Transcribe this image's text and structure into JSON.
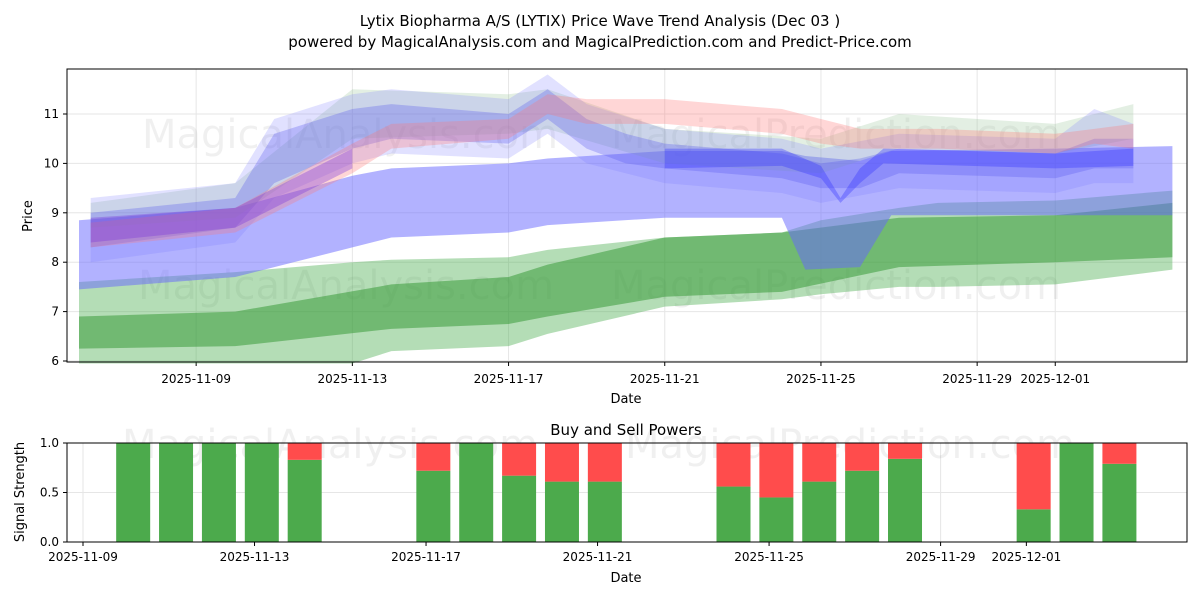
{
  "title_line1": "Lytix Biopharma A/S (LYTIX) Price Wave Trend Analysis (Dec 03 )",
  "title_line2": "powered by MagicalAnalysis.com and MagicalPrediction.com and Predict-Price.com",
  "watermarks": [
    "MagicalAnalysis.com",
    "MagicalPrediction.com"
  ],
  "chart_data": [
    {
      "type": "area",
      "title": "",
      "xlabel": "Date",
      "ylabel": "Price",
      "ylim": [
        5.95,
        11.9
      ],
      "xlim": [
        "2025-11-05.7",
        "2025-12-04.4"
      ],
      "x_ticks": [
        "2025-11-09",
        "2025-11-13",
        "2025-11-17",
        "2025-11-21",
        "2025-11-25",
        "2025-11-29",
        "2025-12-01"
      ],
      "y_ticks": [
        6,
        7,
        8,
        9,
        10,
        11
      ],
      "grid": true,
      "bands": [
        {
          "name": "green-outer",
          "color": "#4caf50",
          "opacity": 0.42,
          "points": [
            [
              0,
              5.95,
              7.6
            ],
            [
              4,
              5.95,
              7.8
            ],
            [
              7,
              5.95,
              8.0
            ],
            [
              8,
              6.2,
              8.05
            ],
            [
              11,
              6.3,
              8.1
            ],
            [
              12,
              6.55,
              8.25
            ],
            [
              15,
              7.1,
              8.5
            ],
            [
              18,
              7.25,
              8.6
            ],
            [
              19,
              7.35,
              8.85
            ],
            [
              21,
              7.5,
              9.1
            ],
            [
              22,
              7.5,
              9.2
            ],
            [
              25,
              7.55,
              9.25
            ],
            [
              28,
              7.85,
              9.45
            ]
          ]
        },
        {
          "name": "green-inner",
          "color": "#3a9a3a",
          "opacity": 0.55,
          "points": [
            [
              0,
              6.25,
              6.9
            ],
            [
              4,
              6.3,
              7.0
            ],
            [
              8,
              6.65,
              7.55
            ],
            [
              11,
              6.75,
              7.7
            ],
            [
              12,
              6.9,
              7.95
            ],
            [
              15,
              7.3,
              8.5
            ],
            [
              18,
              7.4,
              8.6
            ],
            [
              21,
              7.9,
              8.9
            ],
            [
              25,
              8.0,
              8.95
            ],
            [
              28,
              8.1,
              9.2
            ]
          ]
        },
        {
          "name": "blue-main",
          "color": "#6666ff",
          "opacity": 0.5,
          "points": [
            [
              0,
              7.45,
              8.85
            ],
            [
              4,
              7.7,
              9.1
            ],
            [
              7,
              8.3,
              9.75
            ],
            [
              8,
              8.5,
              9.9
            ],
            [
              11,
              8.6,
              10.0
            ],
            [
              12,
              8.75,
              10.1
            ],
            [
              15,
              8.9,
              10.25
            ],
            [
              18,
              8.9,
              10.25
            ],
            [
              18.6,
              7.85,
              10.15
            ],
            [
              20,
              7.9,
              10.05
            ],
            [
              20.8,
              8.95,
              10.25
            ],
            [
              25,
              8.95,
              10.3
            ],
            [
              28,
              8.95,
              10.35
            ]
          ]
        },
        {
          "name": "grey-green-upper",
          "color": "#8fbf8f",
          "opacity": 0.25,
          "points": [
            [
              0.3,
              8.7,
              9.2
            ],
            [
              4,
              8.9,
              9.6
            ],
            [
              7,
              10.5,
              11.5
            ],
            [
              11,
              10.6,
              11.4
            ],
            [
              12,
              10.7,
              11.5
            ],
            [
              15,
              10.0,
              10.7
            ],
            [
              19,
              9.8,
              10.5
            ],
            [
              21,
              10.3,
              11.0
            ],
            [
              25,
              10.2,
              10.8
            ],
            [
              27,
              10.5,
              11.2
            ]
          ]
        },
        {
          "name": "blue-upper-wide",
          "color": "#7777ff",
          "opacity": 0.22,
          "points": [
            [
              0.3,
              8.0,
              9.3
            ],
            [
              4,
              8.4,
              9.6
            ],
            [
              5,
              9.3,
              10.9
            ],
            [
              7,
              10.0,
              11.4
            ],
            [
              8,
              10.2,
              11.5
            ],
            [
              11,
              10.1,
              11.3
            ],
            [
              12,
              10.6,
              11.8
            ],
            [
              13,
              10.0,
              11.2
            ],
            [
              15,
              9.6,
              10.7
            ],
            [
              18,
              9.4,
              10.5
            ],
            [
              19,
              9.2,
              10.3
            ],
            [
              21,
              9.5,
              10.6
            ],
            [
              25,
              9.4,
              10.5
            ],
            [
              26,
              9.6,
              11.1
            ],
            [
              27,
              9.6,
              10.8
            ]
          ]
        },
        {
          "name": "blue-upper",
          "color": "#5555ee",
          "opacity": 0.3,
          "points": [
            [
              0.3,
              8.3,
              9.0
            ],
            [
              4,
              8.7,
              9.3
            ],
            [
              5,
              9.6,
              10.6
            ],
            [
              7,
              10.3,
              11.1
            ],
            [
              8,
              10.5,
              11.2
            ],
            [
              11,
              10.4,
              11.0
            ],
            [
              12,
              10.9,
              11.5
            ],
            [
              13,
              10.3,
              10.9
            ],
            [
              14,
              10.0,
              10.6
            ],
            [
              15,
              9.9,
              10.4
            ],
            [
              18,
              9.7,
              10.2
            ],
            [
              19,
              9.5,
              10.0
            ],
            [
              20,
              9.5,
              10.1
            ],
            [
              21,
              9.8,
              10.3
            ],
            [
              25,
              9.7,
              10.2
            ],
            [
              26,
              9.9,
              10.5
            ],
            [
              27,
              9.9,
              10.5
            ]
          ]
        },
        {
          "name": "red-upper",
          "color": "#ff7777",
          "opacity": 0.3,
          "points": [
            [
              0.3,
              8.3,
              8.8
            ],
            [
              4,
              8.6,
              9.1
            ],
            [
              7,
              9.8,
              10.4
            ],
            [
              8,
              10.3,
              10.8
            ],
            [
              11,
              10.5,
              10.9
            ],
            [
              12,
              11.0,
              11.4
            ],
            [
              13,
              10.8,
              11.3
            ],
            [
              15,
              10.8,
              11.3
            ],
            [
              18,
              10.6,
              11.1
            ],
            [
              19,
              10.4,
              10.9
            ],
            [
              20,
              10.3,
              10.7
            ],
            [
              22,
              10.3,
              10.7
            ],
            [
              25,
              10.2,
              10.6
            ],
            [
              26,
              10.4,
              10.7
            ],
            [
              27,
              10.3,
              10.8
            ]
          ]
        },
        {
          "name": "blue-dip",
          "color": "#3333ff",
          "opacity": 0.35,
          "points": [
            [
              15,
              9.9,
              10.3
            ],
            [
              18,
              9.95,
              10.3
            ],
            [
              19,
              9.7,
              9.95
            ],
            [
              19.5,
              9.2,
              9.3
            ],
            [
              20,
              9.6,
              9.9
            ],
            [
              20.6,
              10.0,
              10.3
            ],
            [
              25,
              9.9,
              10.2
            ],
            [
              27,
              9.95,
              10.3
            ]
          ]
        },
        {
          "name": "purple-start",
          "color": "#7733dd",
          "opacity": 0.35,
          "points": [
            [
              0.3,
              8.4,
              8.9
            ],
            [
              4,
              8.7,
              9.1
            ],
            [
              5,
              9.1,
              9.5
            ],
            [
              7,
              9.9,
              10.3
            ]
          ]
        }
      ]
    },
    {
      "type": "bar",
      "title": "Buy and Sell Powers",
      "xlabel": "Date",
      "ylabel": "Signal Strength",
      "ylim": [
        0,
        1.0
      ],
      "y_ticks": [
        "0.0",
        "0.5",
        "1.0"
      ],
      "x_ticks": [
        "2025-11-09",
        "2025-11-13",
        "2025-11-17",
        "2025-11-21",
        "2025-11-25",
        "2025-11-29",
        "2025-12-01"
      ],
      "categories": [
        "2025-11-10",
        "2025-11-11",
        "2025-11-12",
        "2025-11-13",
        "2025-11-14",
        "2025-11-17",
        "2025-11-18",
        "2025-11-19",
        "2025-11-20",
        "2025-11-21",
        "2025-11-24",
        "2025-11-25",
        "2025-11-26",
        "2025-11-27",
        "2025-11-28",
        "2025-12-01",
        "2025-12-02",
        "2025-12-03"
      ],
      "series": [
        {
          "name": "Buy",
          "color": "#4caa4c",
          "values": [
            1,
            1,
            1,
            1,
            0.83,
            0.72,
            1,
            0.67,
            0.61,
            0.61,
            0.56,
            0.45,
            0.61,
            0.72,
            0.84,
            0.33,
            1,
            0.79
          ]
        },
        {
          "name": "Sell",
          "color": "#ff4c4c",
          "values": [
            0,
            0,
            0,
            0,
            0.17,
            0.28,
            0,
            0.33,
            0.39,
            0.39,
            0.44,
            0.55,
            0.39,
            0.28,
            0.16,
            0.67,
            0,
            0.21
          ]
        }
      ]
    }
  ]
}
